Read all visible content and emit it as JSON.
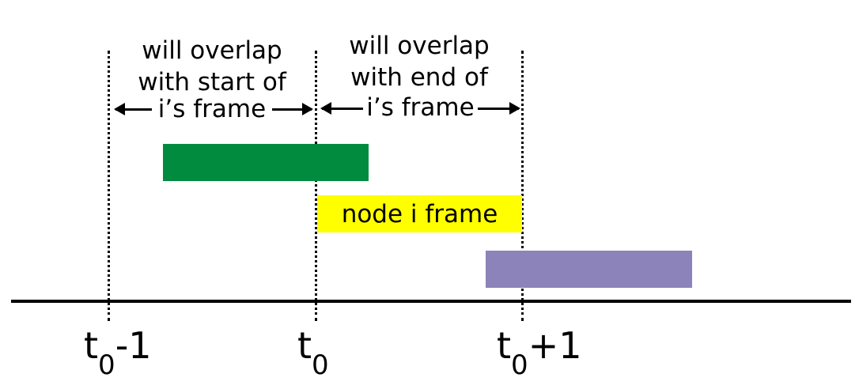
{
  "regions": {
    "left": {
      "line1": "will overlap",
      "line2": "with start of",
      "line3": "i’s frame"
    },
    "right": {
      "line1": "will overlap",
      "line2": "with end of",
      "line3": "i’s frame"
    }
  },
  "frames": {
    "previous": {
      "color": "#008B3E"
    },
    "node": {
      "label": "node i frame",
      "color": "#FFFF00"
    },
    "next": {
      "color": "#8B83B9"
    }
  },
  "ticks": {
    "t0_minus_1": {
      "base": "t",
      "sub": "0",
      "suffix": "-1"
    },
    "t0": {
      "base": "t",
      "sub": "0",
      "suffix": ""
    },
    "t0_plus_1": {
      "base": "t",
      "sub": "0",
      "suffix": "+1"
    }
  }
}
